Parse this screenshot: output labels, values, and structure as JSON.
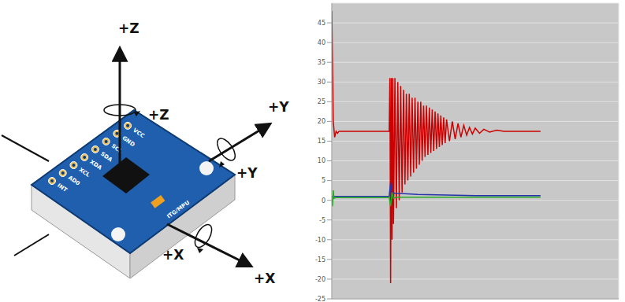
{
  "diagram": {
    "axis_labels": [
      "+Z",
      "+Z",
      "+Y",
      "+Y",
      "+X",
      "+X"
    ],
    "pins": [
      "INT",
      "AD0",
      "XCL",
      "XDA",
      "SDA",
      "SCL",
      "GND",
      "VCC"
    ],
    "chip_label": "ITG/MPU"
  },
  "chart_data": {
    "type": "line",
    "xlim": [
      0,
      400
    ],
    "xticks": [
      50,
      100,
      150,
      200,
      250,
      300,
      350
    ],
    "ylim": [
      -25,
      50
    ],
    "yticks": [
      -25,
      -20,
      -15,
      -10,
      -5,
      0,
      5,
      10,
      15,
      20,
      25,
      30,
      35,
      40,
      45
    ],
    "grid": true,
    "tick_labels": "y",
    "series": [
      {
        "color": "#cc0000",
        "x": [
          0,
          2,
          4,
          6,
          8,
          10,
          80,
          81,
          82,
          83,
          84,
          85,
          86,
          88,
          90,
          92,
          94,
          96,
          98,
          100,
          102,
          104,
          106,
          108,
          110,
          112,
          114,
          116,
          118,
          120,
          122,
          124,
          126,
          128,
          130,
          132,
          134,
          136,
          138,
          140,
          142,
          144,
          146,
          148,
          150,
          152,
          154,
          156,
          158,
          160,
          164,
          168,
          172,
          176,
          180,
          184,
          188,
          192,
          196,
          200,
          206,
          212,
          220,
          230,
          240,
          291
        ],
        "values": [
          48,
          20,
          16,
          17.5,
          17,
          17.5,
          17.5,
          31,
          -21,
          31,
          -10,
          31,
          -6,
          31,
          -2,
          30,
          0,
          29,
          2,
          28,
          4,
          27,
          5,
          27,
          6,
          26,
          7,
          26,
          8,
          25,
          9,
          25,
          10,
          24,
          11,
          24,
          11.5,
          23.5,
          12,
          23,
          12.5,
          22.5,
          13,
          22,
          13.5,
          21.5,
          14,
          21,
          14.5,
          20.5,
          15,
          20,
          15.5,
          19.5,
          16,
          19,
          16.5,
          18.5,
          16.8,
          18.3,
          17,
          18,
          17.3,
          17.8,
          17.5,
          17.5
        ]
      },
      {
        "color": "#2233aa",
        "x": [
          0,
          80,
          82,
          84,
          88,
          120,
          200,
          291
        ],
        "values": [
          1,
          1,
          4.5,
          2,
          1.8,
          1.5,
          1.2,
          1.2
        ]
      },
      {
        "color": "#22aa22",
        "x": [
          0,
          1,
          2,
          3,
          6,
          80,
          82,
          84,
          86,
          90,
          291
        ],
        "values": [
          1,
          -1.5,
          2.5,
          0.5,
          0.7,
          0.7,
          -1.5,
          2,
          0.5,
          0.8,
          0.8
        ]
      }
    ]
  }
}
